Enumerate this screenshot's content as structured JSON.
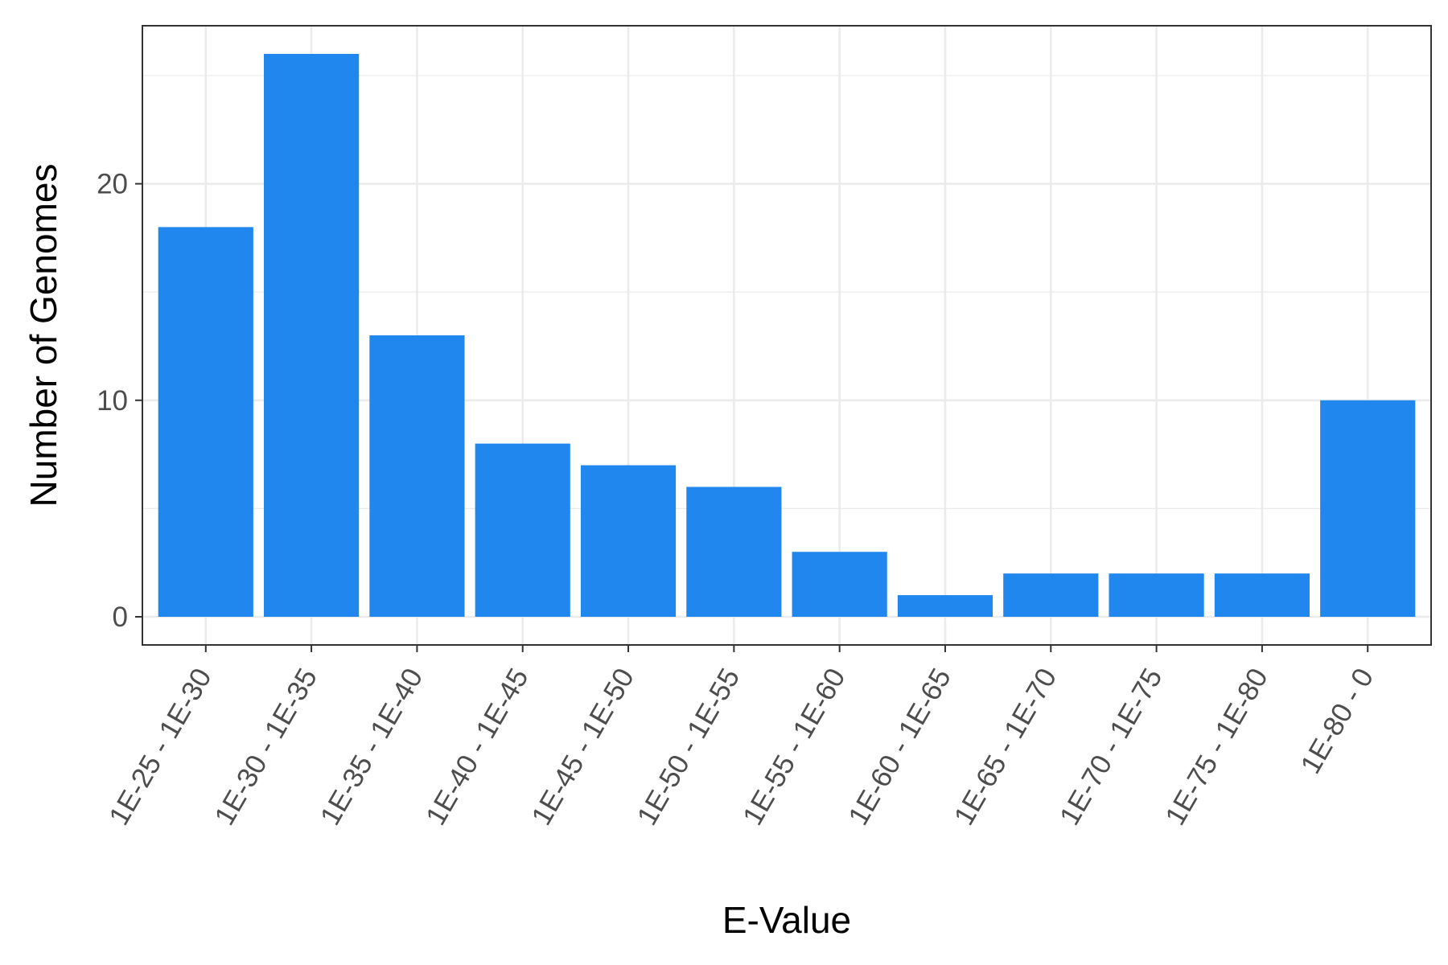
{
  "chart_data": {
    "type": "bar",
    "title": "",
    "xlabel": "E-Value",
    "ylabel": "Number of Genomes",
    "categories": [
      "1E-25 - 1E-30",
      "1E-30 - 1E-35",
      "1E-35 - 1E-40",
      "1E-40 - 1E-45",
      "1E-45 - 1E-50",
      "1E-50 - 1E-55",
      "1E-55 - 1E-60",
      "1E-60 - 1E-65",
      "1E-65 - 1E-70",
      "1E-70 - 1E-75",
      "1E-75 - 1E-80",
      "1E-80 - 0"
    ],
    "values": [
      18,
      26,
      13,
      8,
      7,
      6,
      3,
      1,
      2,
      2,
      2,
      10
    ],
    "ylim": [
      -1.3,
      27.3
    ],
    "y_ticks": [
      0,
      10,
      20
    ],
    "y_minor_ticks": [
      5,
      15,
      25
    ],
    "grid": true,
    "legend": "none",
    "bar_color": "#1f87ee",
    "grid_color": "#ebebeb"
  }
}
